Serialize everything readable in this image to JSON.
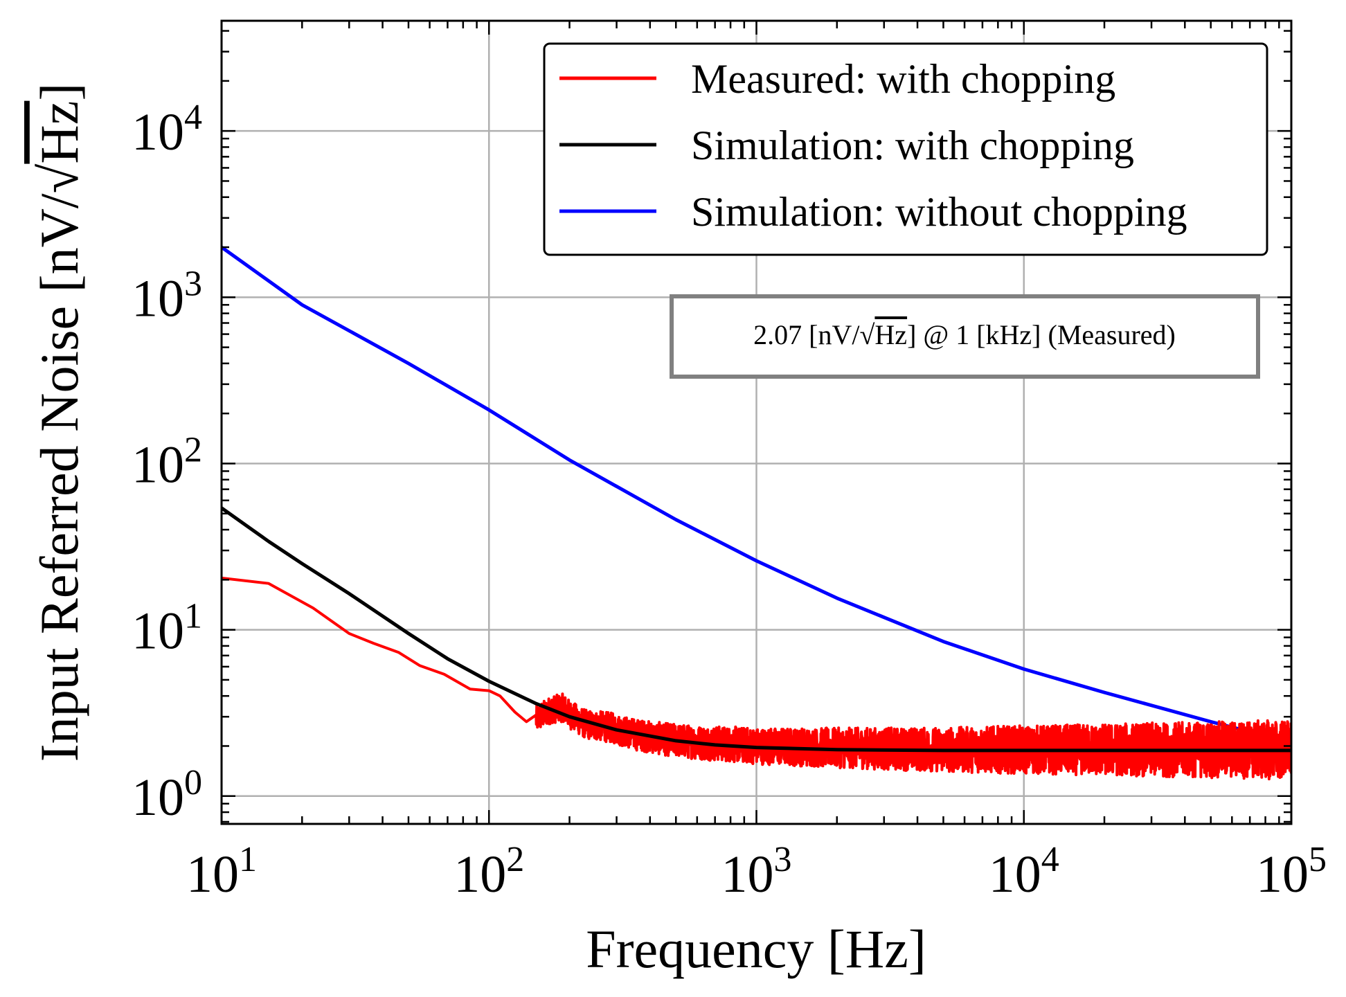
{
  "chart_data": {
    "type": "line",
    "xlabel": "Frequency [Hz]",
    "ylabel_text": "Input Referred Noise [nV/",
    "ylabel_radicand": "Hz",
    "ylabel_close": "]",
    "x_scale": "log",
    "y_scale": "log",
    "xlim": [
      10,
      100000
    ],
    "ylim": [
      0.68,
      46000
    ],
    "grid": true,
    "legend_position": "top-right",
    "x_ticks": [
      {
        "value": 10,
        "base": "10",
        "exp": "1"
      },
      {
        "value": 100,
        "base": "10",
        "exp": "2"
      },
      {
        "value": 1000,
        "base": "10",
        "exp": "3"
      },
      {
        "value": 10000,
        "base": "10",
        "exp": "4"
      },
      {
        "value": 100000,
        "base": "10",
        "exp": "5"
      }
    ],
    "y_ticks": [
      {
        "value": 1,
        "base": "10",
        "exp": "0"
      },
      {
        "value": 10,
        "base": "10",
        "exp": "1"
      },
      {
        "value": 100,
        "base": "10",
        "exp": "2"
      },
      {
        "value": 1000,
        "base": "10",
        "exp": "3"
      },
      {
        "value": 10000,
        "base": "10",
        "exp": "4"
      }
    ],
    "series": [
      {
        "name": "Measured: with chopping",
        "color": "#ff0000",
        "x": [
          10,
          15,
          22,
          30,
          37,
          46,
          55,
          68,
          85,
          100,
          110,
          125,
          138,
          150,
          170,
          190,
          200,
          230,
          280,
          350,
          450,
          600,
          800,
          1000,
          2000,
          5000,
          10000,
          30000,
          100000
        ],
        "y": [
          20.5,
          19.0,
          13.5,
          9.5,
          8.3,
          7.3,
          6.1,
          5.4,
          4.4,
          4.3,
          4.0,
          3.2,
          2.8,
          2.9,
          3.3,
          3.4,
          3.1,
          2.7,
          2.6,
          2.35,
          2.2,
          2.1,
          2.05,
          2.0,
          1.95,
          1.9,
          1.9,
          1.9,
          1.9
        ],
        "noise_from": 150,
        "noise_spread": 0.18
      },
      {
        "name": "Simulation: with chopping",
        "color": "#000000",
        "x": [
          10,
          15,
          20,
          30,
          50,
          70,
          100,
          150,
          200,
          300,
          500,
          700,
          1000,
          2000,
          5000,
          10000,
          100000
        ],
        "y": [
          54,
          34,
          25,
          16.5,
          9.5,
          6.7,
          4.9,
          3.6,
          3.0,
          2.5,
          2.15,
          2.03,
          1.96,
          1.9,
          1.88,
          1.88,
          1.88
        ]
      },
      {
        "name": "Simulation: without chopping",
        "color": "#0000ff",
        "x": [
          10,
          20,
          50,
          100,
          200,
          500,
          1000,
          2000,
          5000,
          10000,
          20000,
          50000,
          100000
        ],
        "y": [
          2000,
          900,
          400,
          210,
          105,
          46,
          26,
          15.5,
          8.5,
          5.8,
          4.2,
          2.8,
          2.1
        ]
      }
    ],
    "annotation": {
      "prefix": "2.07 [nV/",
      "radicand": "Hz",
      "suffix": "] @ 1 [kHz] (Measured)"
    }
  }
}
